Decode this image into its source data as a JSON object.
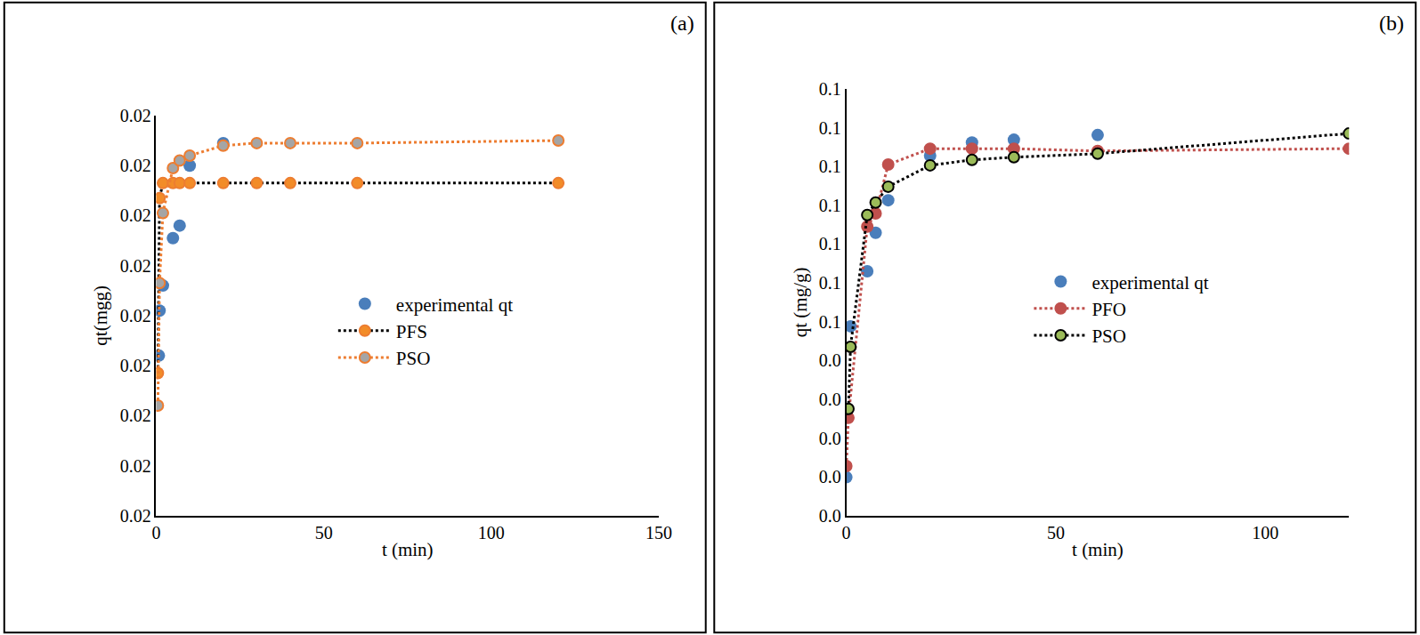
{
  "chart_data": [
    {
      "type": "scatter",
      "title": "(a)",
      "x_label": "t (min)",
      "y_label": "qt(mgg)",
      "xlim": [
        0,
        150
      ],
      "xticks": [
        0,
        50,
        100,
        150
      ],
      "ylim": [
        0.018,
        0.0196
      ],
      "yticks": [
        {
          "value": 0.018,
          "label": "0.02"
        },
        {
          "value": 0.0182,
          "label": "0.02"
        },
        {
          "value": 0.0184,
          "label": "0.02"
        },
        {
          "value": 0.0186,
          "label": "0.02"
        },
        {
          "value": 0.0188,
          "label": "0.02"
        },
        {
          "value": 0.019,
          "label": "0.02"
        },
        {
          "value": 0.0192,
          "label": "0.02"
        },
        {
          "value": 0.0194,
          "label": "0.02"
        },
        {
          "value": 0.0196,
          "label": "0.02"
        }
      ],
      "grid": false,
      "legend": "right",
      "series": [
        {
          "name": "experimental qt",
          "color": "#4a7ebb",
          "marker": "circle",
          "line_style": "none",
          "x": [
            0.8,
            1,
            2,
            5,
            7,
            10,
            20
          ],
          "values": [
            0.01864,
            0.01882,
            0.01892,
            0.01911,
            0.01916,
            0.0194,
            0.01949
          ]
        },
        {
          "name": "PFS",
          "color": "#f28c28",
          "marker": "circle",
          "line_style": "dot",
          "x": [
            0.5,
            1,
            2,
            5,
            7,
            10,
            20,
            30,
            40,
            60,
            120
          ],
          "values": [
            0.01857,
            0.01927,
            0.01933,
            0.01933,
            0.01933,
            0.01933,
            0.01933,
            0.01933,
            0.01933,
            0.01933,
            0.01933
          ]
        },
        {
          "name": "PSO",
          "color": "#a5a5a5",
          "marker": "circle",
          "line_style": "dot",
          "x": [
            0.5,
            1,
            2,
            5,
            7,
            10,
            20,
            30,
            40,
            60,
            120
          ],
          "values": [
            0.01844,
            0.01893,
            0.01921,
            0.01939,
            0.01942,
            0.01944,
            0.01948,
            0.01949,
            0.01949,
            0.01949,
            0.0195
          ]
        }
      ]
    },
    {
      "type": "scatter",
      "title": "(b)",
      "x_label": "t (min)",
      "y_label": "qt (mg/g)",
      "xlim": [
        0,
        120
      ],
      "xticks": [
        0,
        50,
        100
      ],
      "ylim": [
        0,
        0.11
      ],
      "yticks": [
        {
          "value": 0,
          "label": "0.0"
        },
        {
          "value": 0.01,
          "label": "0.0"
        },
        {
          "value": 0.02,
          "label": "0.0"
        },
        {
          "value": 0.03,
          "label": "0.0"
        },
        {
          "value": 0.04,
          "label": "0.0"
        },
        {
          "value": 0.05,
          "label": "0.1"
        },
        {
          "value": 0.06,
          "label": "0.1"
        },
        {
          "value": 0.07,
          "label": "0.1"
        },
        {
          "value": 0.08,
          "label": "0.1"
        },
        {
          "value": 0.09,
          "label": "0.1"
        },
        {
          "value": 0.1,
          "label": "0.1"
        },
        {
          "value": 0.11,
          "label": "0.1"
        }
      ],
      "grid": false,
      "legend": "right",
      "series": [
        {
          "name": "experimental qt",
          "color": "#4a7ebb",
          "marker": "circle",
          "line_style": "none",
          "x": [
            0,
            1,
            5,
            7,
            10,
            20,
            30,
            40,
            60
          ],
          "values": [
            0.0099,
            0.0488,
            0.063,
            0.0729,
            0.0813,
            0.0928,
            0.0962,
            0.0969,
            0.0981
          ]
        },
        {
          "name": "PFO",
          "color": "#c0504d",
          "marker": "circle",
          "line_style": "dot",
          "x": [
            0,
            0.5,
            5,
            7,
            10,
            20,
            30,
            40,
            60,
            120
          ],
          "values": [
            0.0128,
            0.0252,
            0.0745,
            0.0779,
            0.0905,
            0.0946,
            0.0946,
            0.0946,
            0.094,
            0.0946
          ]
        },
        {
          "name": "PSO",
          "color": "#9bbb59",
          "marker": "circle",
          "line_style": "dot",
          "x": [
            0.5,
            1,
            5,
            7,
            10,
            20,
            30,
            40,
            60,
            120
          ],
          "values": [
            0.0275,
            0.0435,
            0.0775,
            0.0807,
            0.0848,
            0.0903,
            0.0917,
            0.0924,
            0.0933,
            0.0985
          ]
        }
      ]
    }
  ]
}
